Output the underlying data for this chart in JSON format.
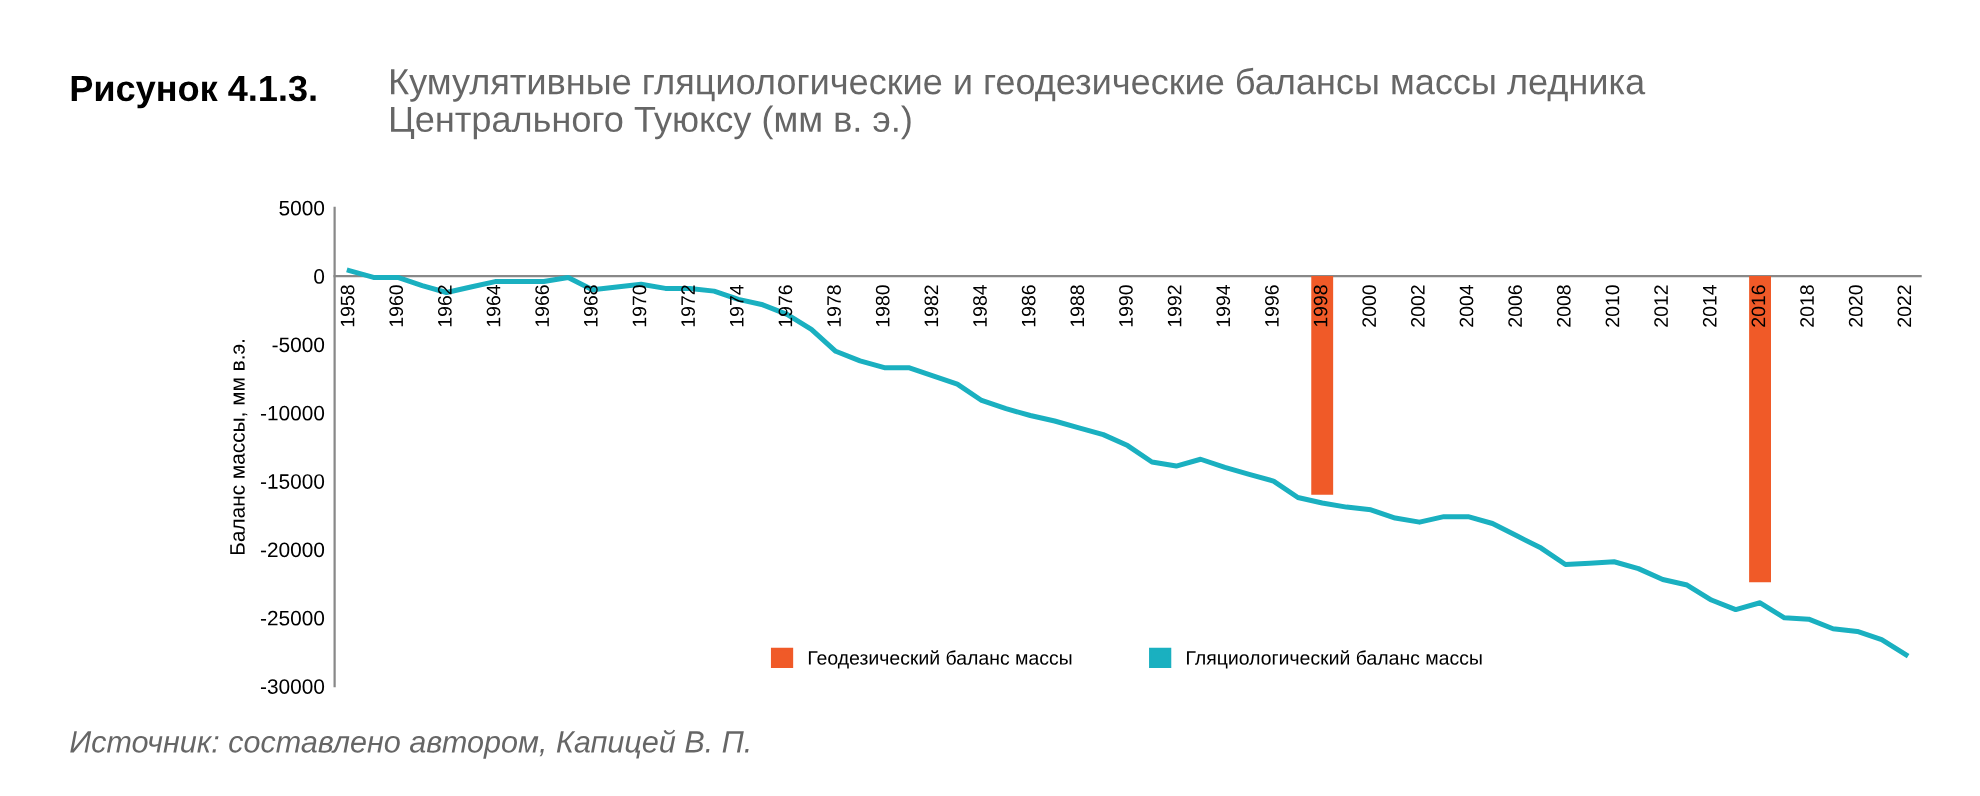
{
  "chart_data": {
    "type": "line",
    "title": "Рисунок 4.1.3.",
    "subtitle": "Кумулятивные гляциологические и геодезические балансы массы ледника\nЦентрального Туюксу (мм в. э.)",
    "ylabel": "Баланс массы, мм в.э.",
    "annotations": [
      "Источник: составлено автором, Капицей В. П."
    ],
    "categories": [
      "1958",
      null,
      "1960",
      null,
      "1962",
      null,
      "1964",
      null,
      "1966",
      null,
      "1968",
      null,
      "1970",
      null,
      "1972",
      null,
      "1974",
      null,
      "1976",
      null,
      "1978",
      null,
      "1980",
      null,
      "1982",
      null,
      "1984",
      null,
      "1986",
      null,
      "1988",
      null,
      "1990",
      null,
      "1992",
      null,
      "1994",
      null,
      "1996",
      null,
      "1998",
      null,
      "2000",
      null,
      "2002",
      null,
      "2004",
      null,
      "2006",
      null,
      "2008",
      null,
      "2010",
      null,
      "2012",
      null,
      "2014",
      null,
      "2016",
      null,
      "2018",
      null,
      "2020",
      null,
      "2022"
    ],
    "series": [
      {
        "name": "Геодезический баланс массы",
        "type": "bar",
        "color": "#f05a28",
        "values": [
          null,
          null,
          null,
          null,
          null,
          null,
          null,
          null,
          null,
          null,
          null,
          null,
          null,
          null,
          null,
          null,
          null,
          null,
          null,
          null,
          null,
          null,
          null,
          null,
          null,
          null,
          null,
          null,
          null,
          null,
          null,
          null,
          null,
          null,
          null,
          null,
          null,
          null,
          null,
          null,
          -16000,
          null,
          null,
          null,
          null,
          null,
          null,
          null,
          null,
          null,
          null,
          null,
          null,
          null,
          null,
          null,
          null,
          null,
          -22400,
          null,
          null,
          null,
          null,
          null,
          null
        ]
      },
      {
        "name": "Гляциологический баланс массы",
        "color": "#1ab0c0",
        "values": [
          400,
          -100,
          -100,
          -700,
          -1200,
          -800,
          -400,
          -400,
          -400,
          -100,
          -1000,
          -800,
          -600,
          -900,
          -900,
          -1100,
          -1700,
          -2100,
          -2800,
          -3900,
          -5500,
          -6200,
          -6700,
          -6700,
          -7300,
          -7900,
          -9100,
          -9700,
          -10200,
          -10600,
          -11100,
          -11600,
          -12400,
          -13600,
          -13900,
          -13400,
          -14000,
          -14500,
          -15000,
          -16200,
          -16600,
          -16900,
          -17100,
          -17700,
          -18000,
          -17600,
          -17600,
          -18100,
          -19000,
          -19900,
          -21100,
          -21000,
          -20900,
          -21400,
          -22200,
          -22600,
          -23700,
          -24400,
          -23900,
          -25000,
          -25100,
          -25800,
          -26000,
          -26600,
          -27700
        ]
      }
    ],
    "ylim": [
      -30000,
      5000
    ],
    "yticks": [
      5000,
      0,
      -5000,
      -10000,
      -15000,
      -20000,
      -25000,
      -30000
    ],
    "grid": false,
    "legend": "bottom",
    "marker": "none",
    "line_style": "solid"
  }
}
